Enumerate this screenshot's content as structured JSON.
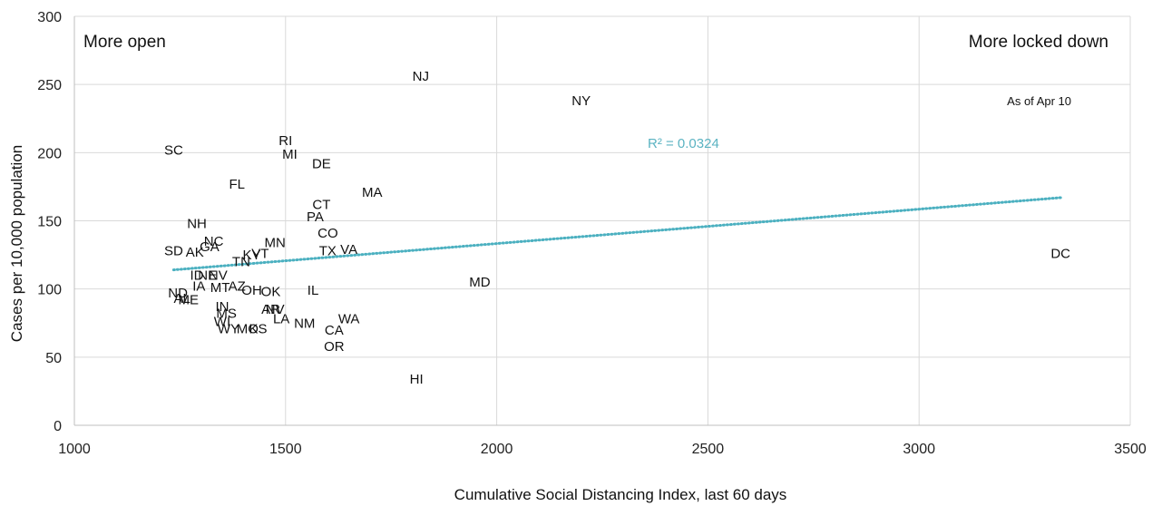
{
  "chart_data": {
    "type": "scatter",
    "xlabel": "Cumulative Social Distancing Index, last 60 days",
    "ylabel": "Cases per 10,000 population",
    "xlim": [
      1000,
      3500
    ],
    "ylim": [
      0,
      300
    ],
    "xticks": [
      1000,
      1500,
      2000,
      2500,
      3000,
      3500
    ],
    "yticks": [
      0,
      50,
      100,
      150,
      200,
      250,
      300
    ],
    "grid": true,
    "annotations": {
      "left": "More open",
      "right": "More locked down",
      "date": "As of Apr 10",
      "r2": "R² = 0.0324"
    },
    "trendline": {
      "type": "linear",
      "x": [
        1235,
        3335
      ],
      "y": [
        114,
        167
      ],
      "color": "#4bb0c0"
    },
    "points": [
      {
        "label": "NJ",
        "x": 1820,
        "y": 256
      },
      {
        "label": "NY",
        "x": 2200,
        "y": 238
      },
      {
        "label": "DC",
        "x": 3335,
        "y": 126
      },
      {
        "label": "SC",
        "x": 1235,
        "y": 202
      },
      {
        "label": "RI",
        "x": 1500,
        "y": 209
      },
      {
        "label": "MI",
        "x": 1510,
        "y": 199
      },
      {
        "label": "DE",
        "x": 1585,
        "y": 192
      },
      {
        "label": "FL",
        "x": 1385,
        "y": 177
      },
      {
        "label": "MA",
        "x": 1705,
        "y": 171
      },
      {
        "label": "CT",
        "x": 1585,
        "y": 162
      },
      {
        "label": "PA",
        "x": 1570,
        "y": 153
      },
      {
        "label": "NH",
        "x": 1290,
        "y": 148
      },
      {
        "label": "CO",
        "x": 1600,
        "y": 141
      },
      {
        "label": "NC",
        "x": 1330,
        "y": 135
      },
      {
        "label": "MN",
        "x": 1475,
        "y": 134
      },
      {
        "label": "GA",
        "x": 1320,
        "y": 131
      },
      {
        "label": "SD",
        "x": 1235,
        "y": 128
      },
      {
        "label": "AK",
        "x": 1285,
        "y": 127
      },
      {
        "label": "TX",
        "x": 1600,
        "y": 128
      },
      {
        "label": "VA",
        "x": 1650,
        "y": 129
      },
      {
        "label": "KY",
        "x": 1420,
        "y": 125
      },
      {
        "label": "VT",
        "x": 1440,
        "y": 126
      },
      {
        "label": "TN",
        "x": 1395,
        "y": 120
      },
      {
        "label": "ID",
        "x": 1290,
        "y": 110
      },
      {
        "label": "NE",
        "x": 1315,
        "y": 110
      },
      {
        "label": "NV",
        "x": 1340,
        "y": 110
      },
      {
        "label": "IA",
        "x": 1295,
        "y": 102
      },
      {
        "label": "MT",
        "x": 1345,
        "y": 101
      },
      {
        "label": "AZ",
        "x": 1385,
        "y": 102
      },
      {
        "label": "OH",
        "x": 1420,
        "y": 99
      },
      {
        "label": "OK",
        "x": 1465,
        "y": 98
      },
      {
        "label": "IL",
        "x": 1565,
        "y": 99
      },
      {
        "label": "MD",
        "x": 1960,
        "y": 105
      },
      {
        "label": "ND",
        "x": 1245,
        "y": 97
      },
      {
        "label": "AL",
        "x": 1255,
        "y": 93
      },
      {
        "label": "ME",
        "x": 1270,
        "y": 92
      },
      {
        "label": "IN",
        "x": 1350,
        "y": 87
      },
      {
        "label": "AR",
        "x": 1465,
        "y": 85
      },
      {
        "label": "NV",
        "x": 1475,
        "y": 85
      },
      {
        "label": "MS",
        "x": 1360,
        "y": 82
      },
      {
        "label": "LA",
        "x": 1490,
        "y": 78
      },
      {
        "label": "WA",
        "x": 1650,
        "y": 78
      },
      {
        "label": "WI",
        "x": 1350,
        "y": 76
      },
      {
        "label": "NM",
        "x": 1545,
        "y": 75
      },
      {
        "label": "WY",
        "x": 1365,
        "y": 71
      },
      {
        "label": "MO",
        "x": 1410,
        "y": 71
      },
      {
        "label": "KS",
        "x": 1435,
        "y": 71
      },
      {
        "label": "CA",
        "x": 1615,
        "y": 70
      },
      {
        "label": "OR",
        "x": 1615,
        "y": 58
      },
      {
        "label": "HI",
        "x": 1810,
        "y": 34
      }
    ]
  }
}
